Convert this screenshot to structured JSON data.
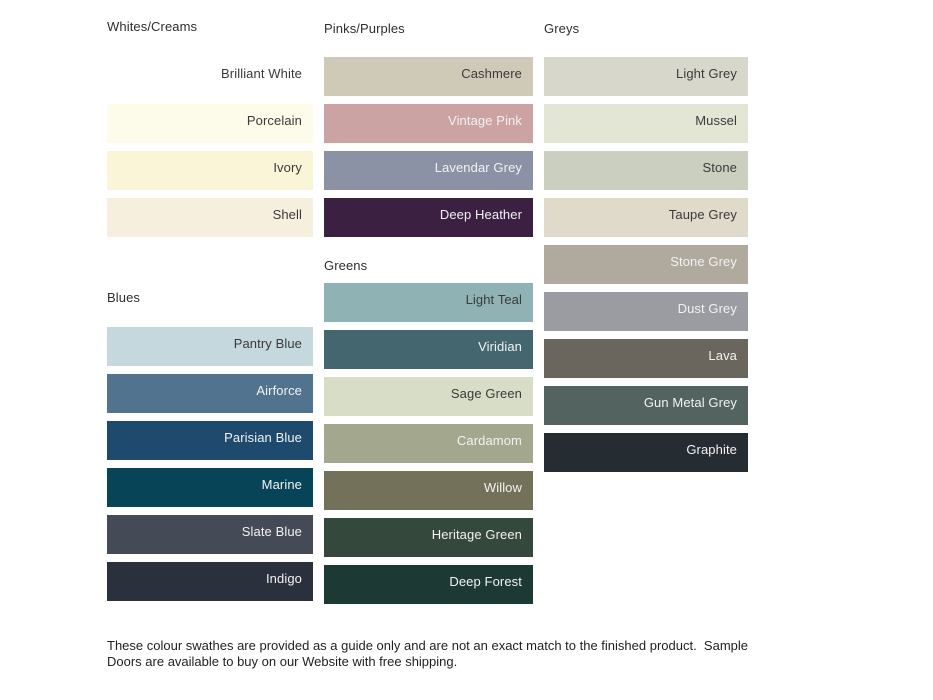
{
  "text_colors": {
    "dark": "#3a3a3a",
    "light": "#f2f2f2"
  },
  "sections": [
    {
      "id": "whites",
      "title": "Whites/Creams",
      "swatches": [
        {
          "name": "Brilliant White",
          "color": "#ffffff",
          "text": "dark"
        },
        {
          "name": "Porcelain",
          "color": "#fdfbe9",
          "text": "dark"
        },
        {
          "name": "Ivory",
          "color": "#faf5d7",
          "text": "dark"
        },
        {
          "name": "Shell",
          "color": "#f7efde",
          "text": "dark"
        }
      ]
    },
    {
      "id": "pinks",
      "title": "Pinks/Purples",
      "swatches": [
        {
          "name": "Cashmere",
          "color": "#cfc9b8",
          "text": "dark"
        },
        {
          "name": "Vintage Pink",
          "color": "#cba3a2",
          "text": "light"
        },
        {
          "name": "Lavendar Grey",
          "color": "#8c92a6",
          "text": "light"
        },
        {
          "name": "Deep Heather",
          "color": "#3c2042",
          "text": "light"
        }
      ]
    },
    {
      "id": "greys",
      "title": "Greys",
      "swatches": [
        {
          "name": "Light Grey",
          "color": "#d7d7cb",
          "text": "dark"
        },
        {
          "name": "Mussel",
          "color": "#e3e5d5",
          "text": "dark"
        },
        {
          "name": "Stone",
          "color": "#cbcfc0",
          "text": "dark"
        },
        {
          "name": "Taupe Grey",
          "color": "#dfdaca",
          "text": "dark"
        },
        {
          "name": "Stone Grey",
          "color": "#b0a99d",
          "text": "light"
        },
        {
          "name": "Dust Grey",
          "color": "#9a9ca2",
          "text": "light"
        },
        {
          "name": "Lava",
          "color": "#6a665d",
          "text": "light"
        },
        {
          "name": "Gun Metal Grey",
          "color": "#526360",
          "text": "light"
        },
        {
          "name": "Graphite",
          "color": "#252d33",
          "text": "light"
        }
      ]
    },
    {
      "id": "blues",
      "title": "Blues",
      "swatches": [
        {
          "name": "Pantry Blue",
          "color": "#c4d8de",
          "text": "dark"
        },
        {
          "name": "Airforce",
          "color": "#51738d",
          "text": "light"
        },
        {
          "name": "Parisian Blue",
          "color": "#1e4a6d",
          "text": "light"
        },
        {
          "name": "Marine",
          "color": "#084458",
          "text": "light"
        },
        {
          "name": "Slate Blue",
          "color": "#444b57",
          "text": "light"
        },
        {
          "name": "Indigo",
          "color": "#2a313c",
          "text": "light"
        }
      ]
    },
    {
      "id": "greens",
      "title": "Greens",
      "swatches": [
        {
          "name": "Light Teal",
          "color": "#8fb3b4",
          "text": "dark"
        },
        {
          "name": "Viridian",
          "color": "#44666f",
          "text": "light"
        },
        {
          "name": "Sage Green",
          "color": "#d8ddc7",
          "text": "dark"
        },
        {
          "name": "Cardamom",
          "color": "#a3a78d",
          "text": "light"
        },
        {
          "name": "Willow",
          "color": "#74715a",
          "text": "light"
        },
        {
          "name": "Heritage Green",
          "color": "#35483c",
          "text": "light"
        },
        {
          "name": "Deep Forest",
          "color": "#1c3a33",
          "text": "light"
        }
      ]
    }
  ],
  "footer": {
    "lines": [
      "These colour swathes are provided as a guide only and are not an exact match to the finished product.  Sample",
      "Doors are available to buy on our Website with free shipping."
    ]
  }
}
